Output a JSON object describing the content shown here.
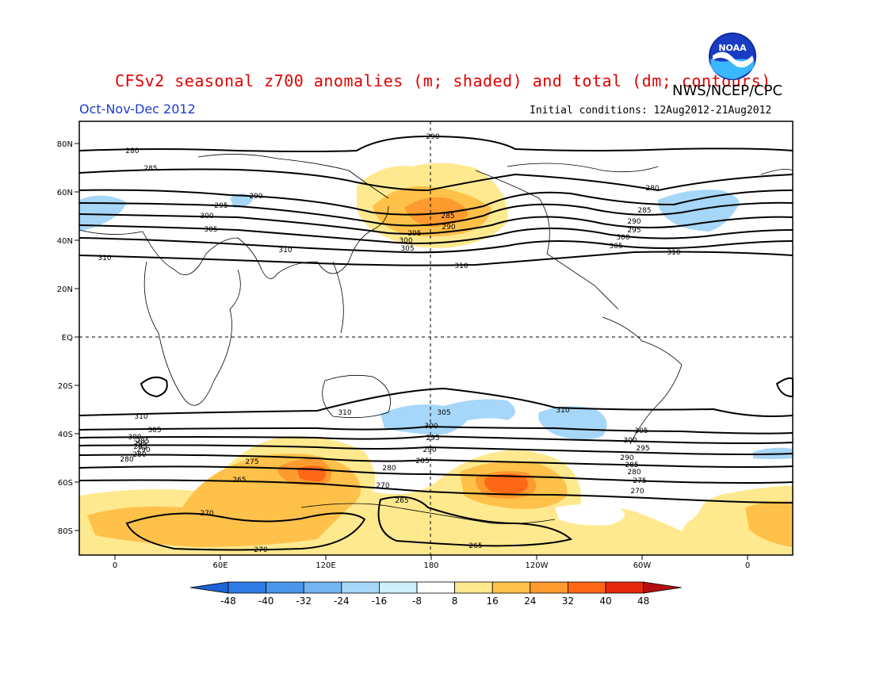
{
  "title": "CFSv2 seasonal z700 anomalies (m; shaded) and total (dm; contours)",
  "organization": "NWS/NCEP/CPC",
  "logo_text": "NOAA",
  "season": "Oct-Nov-Dec 2012",
  "initial_conditions": "Initial conditions: 12Aug2012-21Aug2012",
  "map": {
    "lat_labels": [
      "80N",
      "60N",
      "40N",
      "20N",
      "EQ",
      "20S",
      "40S",
      "60S",
      "80S"
    ],
    "lon_labels": [
      "0",
      "60E",
      "120E",
      "180",
      "120W",
      "60W",
      "0"
    ]
  },
  "colorbar": {
    "levels": [
      "-48",
      "-40",
      "-32",
      "-24",
      "-16",
      "-8",
      "8",
      "16",
      "24",
      "32",
      "40",
      "48"
    ],
    "colors": [
      "#1e63d6",
      "#2e7be6",
      "#4a96ec",
      "#74b4f2",
      "#a6d6f8",
      "#cdf0fa",
      "#ffffff",
      "#ffe98f",
      "#ffc14a",
      "#ff9a2e",
      "#ff6616",
      "#e8280c",
      "#b40e0e"
    ]
  },
  "contour_labels": [
    {
      "text": "290"
    },
    {
      "text": "280"
    },
    {
      "text": "285"
    },
    {
      "text": "290"
    },
    {
      "text": "295"
    },
    {
      "text": "300"
    },
    {
      "text": "305"
    },
    {
      "text": "310"
    },
    {
      "text": "285"
    },
    {
      "text": "290"
    },
    {
      "text": "295"
    },
    {
      "text": "300"
    },
    {
      "text": "305"
    },
    {
      "text": "310"
    },
    {
      "text": "280"
    },
    {
      "text": "285"
    },
    {
      "text": "290"
    },
    {
      "text": "295"
    },
    {
      "text": "300"
    },
    {
      "text": "305"
    },
    {
      "text": "310"
    },
    {
      "text": "310"
    },
    {
      "text": "310"
    },
    {
      "text": "310"
    },
    {
      "text": "310"
    },
    {
      "text": "305"
    },
    {
      "text": "300"
    },
    {
      "text": "295"
    },
    {
      "text": "290"
    },
    {
      "text": "305"
    },
    {
      "text": "300"
    },
    {
      "text": "295"
    },
    {
      "text": "290"
    },
    {
      "text": "285"
    },
    {
      "text": "280"
    },
    {
      "text": "275"
    },
    {
      "text": "265"
    },
    {
      "text": "280"
    },
    {
      "text": "270"
    },
    {
      "text": "265"
    },
    {
      "text": "270"
    },
    {
      "text": "270"
    },
    {
      "text": "265"
    },
    {
      "text": "305"
    },
    {
      "text": "300"
    },
    {
      "text": "295"
    },
    {
      "text": "290"
    },
    {
      "text": "285"
    },
    {
      "text": "280"
    },
    {
      "text": "275"
    },
    {
      "text": "270"
    },
    {
      "text": "285"
    },
    {
      "text": "280"
    },
    {
      "text": "295"
    }
  ]
}
